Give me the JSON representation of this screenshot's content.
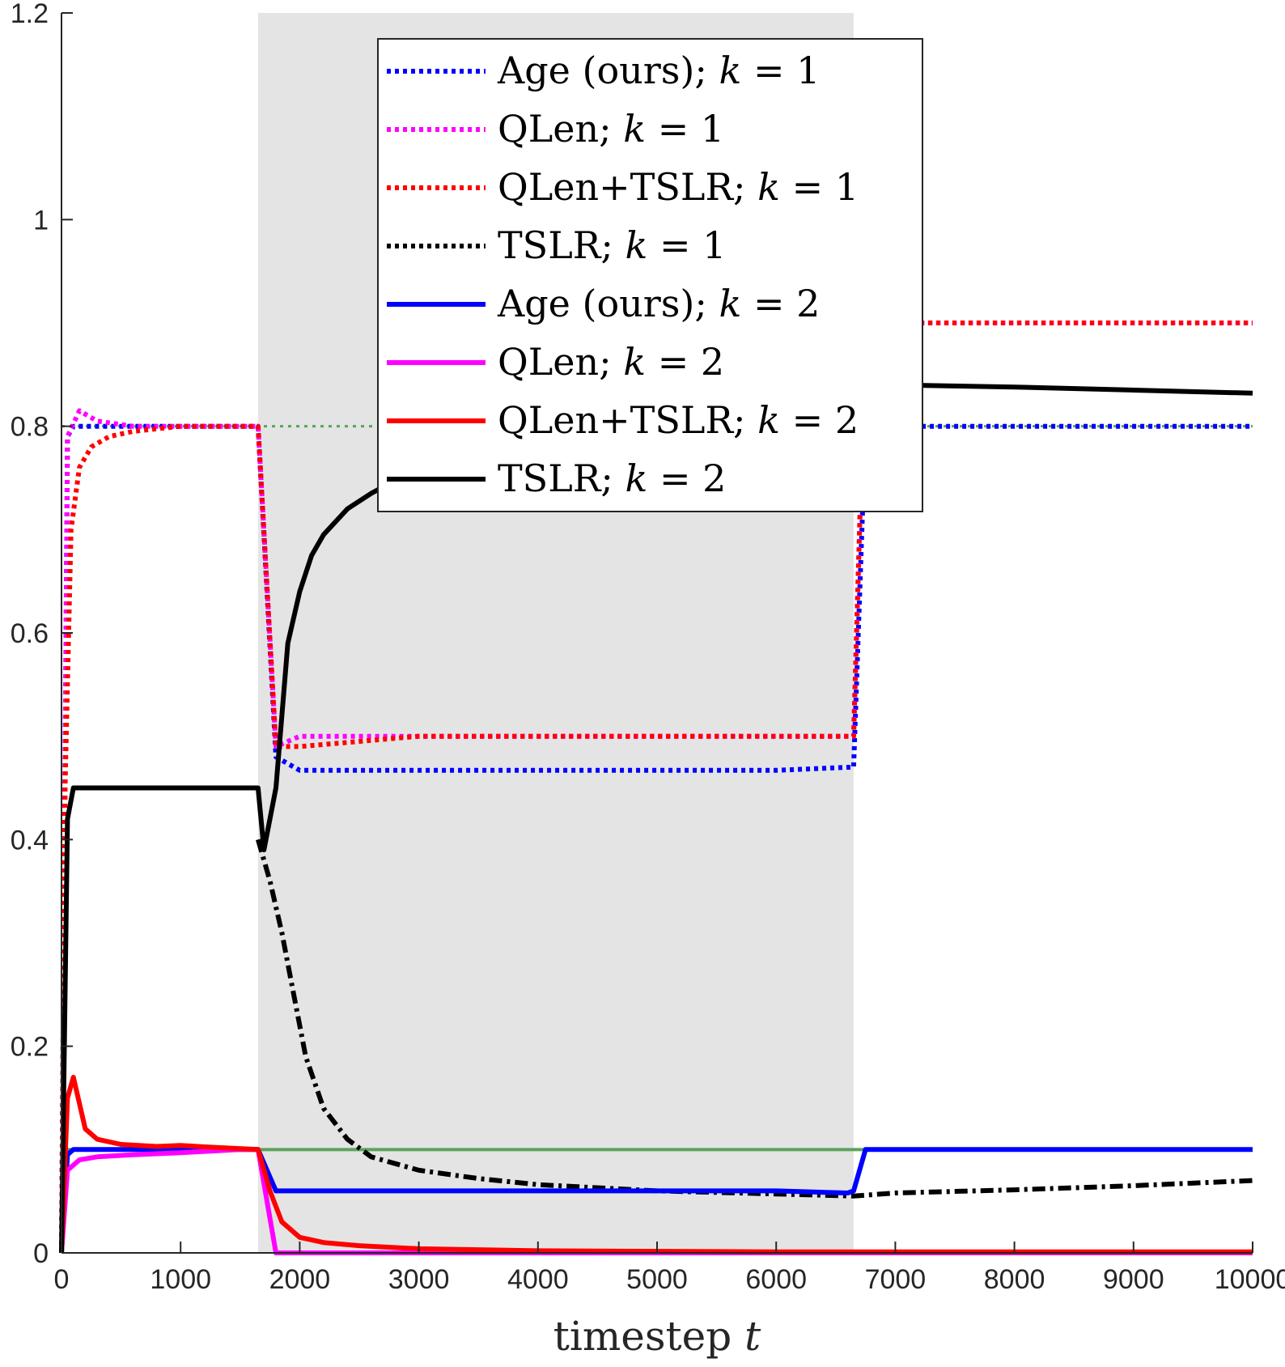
{
  "chart_data": {
    "type": "line",
    "title": "",
    "xlabel": "timestep",
    "xlabel_var": "t",
    "ylabel": "",
    "xlim": [
      0,
      10000
    ],
    "ylim": [
      0,
      1.2
    ],
    "xticks": [
      0,
      1000,
      2000,
      3000,
      4000,
      5000,
      6000,
      7000,
      8000,
      9000,
      10000
    ],
    "yticks": [
      0,
      0.2,
      0.4,
      0.6,
      0.8,
      1,
      1.2
    ],
    "xtick_labels": [
      "0",
      "1000",
      "2000",
      "3000",
      "4000",
      "5000",
      "6000",
      "7000",
      "8000",
      "9000",
      "10000"
    ],
    "ytick_labels": [
      "0",
      "0.2",
      "0.4",
      "0.6",
      "0.8",
      "1",
      "1.2"
    ],
    "grid": false,
    "shaded_region": {
      "x": [
        1650,
        6650
      ],
      "color": "#e4e4e4"
    },
    "reference_lines": [
      {
        "y": 0.8,
        "color": "#5ba35b",
        "style": "dotted"
      },
      {
        "y": 0.1,
        "color": "#5ba35b",
        "style": "solid"
      }
    ],
    "legend_position": "top-center",
    "series": [
      {
        "name": "Age (ours)",
        "k": "1",
        "color": "#0000ff",
        "style": "dotted",
        "x": [
          0,
          50,
          100,
          300,
          600,
          1000,
          1500,
          1650,
          1800,
          2000,
          3000,
          4000,
          5000,
          6000,
          6600,
          6650,
          6750,
          7000,
          8000,
          9000,
          10000
        ],
        "y": [
          0,
          0.79,
          0.8,
          0.8,
          0.8,
          0.8,
          0.8,
          0.8,
          0.48,
          0.467,
          0.467,
          0.467,
          0.467,
          0.467,
          0.47,
          0.47,
          0.8,
          0.8,
          0.8,
          0.8,
          0.8
        ]
      },
      {
        "name": "QLen",
        "k": "1",
        "color": "#ff00ff",
        "style": "dotted",
        "x": [
          0,
          50,
          150,
          300,
          600,
          1000,
          1500,
          1650,
          1800,
          2000,
          3000,
          4000,
          5000,
          6000,
          6600,
          6650,
          6750,
          7000,
          8000,
          9000,
          10000
        ],
        "y": [
          0,
          0.79,
          0.815,
          0.805,
          0.8,
          0.8,
          0.8,
          0.8,
          0.49,
          0.5,
          0.5,
          0.5,
          0.5,
          0.5,
          0.5,
          0.5,
          0.9,
          0.9,
          0.9,
          0.9,
          0.9
        ]
      },
      {
        "name": "QLen+TSLR",
        "k": "1",
        "color": "#ff0000",
        "style": "dotted",
        "x": [
          0,
          30,
          80,
          150,
          250,
          400,
          600,
          1000,
          1500,
          1650,
          1800,
          2000,
          3000,
          4000,
          5000,
          6000,
          6600,
          6650,
          6750,
          7000,
          8000,
          9000,
          10000
        ],
        "y": [
          0,
          0.45,
          0.7,
          0.76,
          0.78,
          0.79,
          0.795,
          0.8,
          0.8,
          0.8,
          0.49,
          0.49,
          0.5,
          0.5,
          0.5,
          0.5,
          0.5,
          0.5,
          0.9,
          0.9,
          0.9,
          0.9,
          0.9
        ]
      },
      {
        "name": "TSLR",
        "k": "1",
        "color": "#000000",
        "style": "dashdot",
        "x": [
          1650,
          1750,
          1850,
          1950,
          2050,
          2200,
          2400,
          2600,
          3000,
          3500,
          4000,
          5000,
          6000,
          6650,
          7000,
          8000,
          9000,
          10000
        ],
        "y": [
          0.4,
          0.36,
          0.31,
          0.25,
          0.19,
          0.14,
          0.11,
          0.093,
          0.08,
          0.072,
          0.066,
          0.06,
          0.057,
          0.055,
          0.058,
          0.061,
          0.065,
          0.07
        ]
      },
      {
        "name": "Age (ours)",
        "k": "2",
        "color": "#0000ff",
        "style": "solid",
        "x": [
          0,
          50,
          100,
          300,
          600,
          1000,
          1500,
          1650,
          1800,
          2000,
          3000,
          4000,
          5000,
          6000,
          6600,
          6650,
          6750,
          7000,
          8000,
          9000,
          10000
        ],
        "y": [
          0,
          0.095,
          0.1,
          0.1,
          0.1,
          0.1,
          0.1,
          0.1,
          0.06,
          0.06,
          0.06,
          0.06,
          0.06,
          0.06,
          0.058,
          0.06,
          0.1,
          0.1,
          0.1,
          0.1,
          0.1
        ]
      },
      {
        "name": "QLen",
        "k": "2",
        "color": "#ff00ff",
        "style": "solid",
        "x": [
          0,
          50,
          150,
          300,
          600,
          1000,
          1500,
          1650,
          1800,
          2000,
          3000,
          6000,
          10000
        ],
        "y": [
          0,
          0.08,
          0.09,
          0.093,
          0.095,
          0.097,
          0.1,
          0.1,
          0.0,
          0.0,
          0.0,
          0.0,
          0.0
        ]
      },
      {
        "name": "QLen+TSLR",
        "k": "2",
        "color": "#ff0000",
        "style": "solid",
        "x": [
          0,
          50,
          100,
          200,
          300,
          500,
          800,
          1000,
          1300,
          1650,
          1750,
          1850,
          2000,
          2200,
          2500,
          3000,
          4000,
          6000,
          10000
        ],
        "y": [
          0,
          0.15,
          0.17,
          0.12,
          0.11,
          0.105,
          0.103,
          0.104,
          0.102,
          0.1,
          0.06,
          0.03,
          0.015,
          0.01,
          0.007,
          0.004,
          0.002,
          0.001,
          0.001
        ]
      },
      {
        "name": "TSLR",
        "k": "2",
        "color": "#000000",
        "style": "solid",
        "x": [
          0,
          50,
          100,
          300,
          600,
          1000,
          1500,
          1600,
          1650,
          1700,
          1800,
          1900,
          2000,
          2100,
          2200,
          2400,
          2600,
          3000,
          3500,
          4000,
          5000,
          6000,
          6650,
          7000,
          8000,
          9000,
          10000
        ],
        "y": [
          0,
          0.42,
          0.45,
          0.45,
          0.45,
          0.45,
          0.45,
          0.45,
          0.45,
          0.39,
          0.45,
          0.59,
          0.64,
          0.675,
          0.695,
          0.72,
          0.735,
          0.76,
          0.78,
          0.79,
          0.8,
          0.81,
          0.82,
          0.84,
          0.838,
          0.835,
          0.832
        ]
      }
    ]
  }
}
